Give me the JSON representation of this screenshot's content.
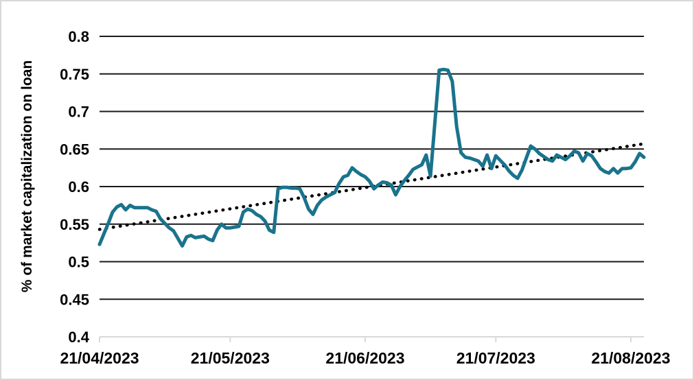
{
  "figure": {
    "background_color": "#ffffff",
    "border_color": "#d8d8d8",
    "gridline_color": "#1a1a1a",
    "axis_color": "#d9d9d9",
    "text_color": "#000000"
  },
  "chart_data": {
    "type": "line",
    "title": "",
    "xlabel": "",
    "ylabel": "% of market capitalization on loan",
    "ylim": [
      0.4,
      0.8
    ],
    "grid": "horizontal",
    "legend": "none",
    "y_ticks": [
      {
        "value": 0.8,
        "label": "0.8"
      },
      {
        "value": 0.75,
        "label": "0.75"
      },
      {
        "value": 0.7,
        "label": "0.7"
      },
      {
        "value": 0.65,
        "label": "0.65"
      },
      {
        "value": 0.6,
        "label": "0.6"
      },
      {
        "value": 0.55,
        "label": "0.55"
      },
      {
        "value": 0.5,
        "label": "0.5"
      },
      {
        "value": 0.45,
        "label": "0.45"
      },
      {
        "value": 0.4,
        "label": "0.4"
      }
    ],
    "x_total_days": 125,
    "x_ticks": [
      {
        "day": 0,
        "label": "21/04/2023"
      },
      {
        "day": 30,
        "label": "21/05/2023"
      },
      {
        "day": 61,
        "label": "21/06/2023"
      },
      {
        "day": 91,
        "label": "21/07/2023"
      },
      {
        "day": 122,
        "label": "21/08/2023"
      }
    ],
    "series": [
      {
        "name": "% of market capitalization on loan",
        "style": "solid",
        "color": "#1a738c",
        "frequency": "daily",
        "start_date": "21/04/2023",
        "end_date": "24/08/2023",
        "values": [
          0.523,
          0.537,
          0.551,
          0.566,
          0.573,
          0.576,
          0.569,
          0.575,
          0.572,
          0.572,
          0.572,
          0.572,
          0.569,
          0.567,
          0.557,
          0.551,
          0.545,
          0.541,
          0.531,
          0.521,
          0.533,
          0.535,
          0.532,
          0.533,
          0.534,
          0.53,
          0.528,
          0.542,
          0.55,
          0.545,
          0.545,
          0.546,
          0.547,
          0.566,
          0.57,
          0.568,
          0.563,
          0.56,
          0.554,
          0.542,
          0.539,
          0.597,
          0.599,
          0.599,
          0.598,
          0.598,
          0.597,
          0.585,
          0.57,
          0.563,
          0.575,
          0.582,
          0.586,
          0.589,
          0.592,
          0.604,
          0.613,
          0.615,
          0.625,
          0.62,
          0.616,
          0.613,
          0.607,
          0.597,
          0.602,
          0.606,
          0.605,
          0.602,
          0.589,
          0.6,
          0.608,
          0.615,
          0.623,
          0.626,
          0.629,
          0.642,
          0.614,
          0.685,
          0.755,
          0.756,
          0.755,
          0.74,
          0.68,
          0.645,
          0.639,
          0.638,
          0.636,
          0.634,
          0.627,
          0.642,
          0.624,
          0.641,
          0.635,
          0.629,
          0.621,
          0.615,
          0.611,
          0.622,
          0.638,
          0.654,
          0.65,
          0.644,
          0.64,
          0.636,
          0.634,
          0.642,
          0.639,
          0.636,
          0.641,
          0.647,
          0.645,
          0.634,
          0.644,
          0.641,
          0.633,
          0.624,
          0.62,
          0.618,
          0.624,
          0.618,
          0.624,
          0.624,
          0.625,
          0.633,
          0.644,
          0.639
        ]
      },
      {
        "name": "linear trend",
        "style": "dotted",
        "color": "#000000",
        "start_value": 0.543,
        "end_value": 0.657
      }
    ]
  }
}
